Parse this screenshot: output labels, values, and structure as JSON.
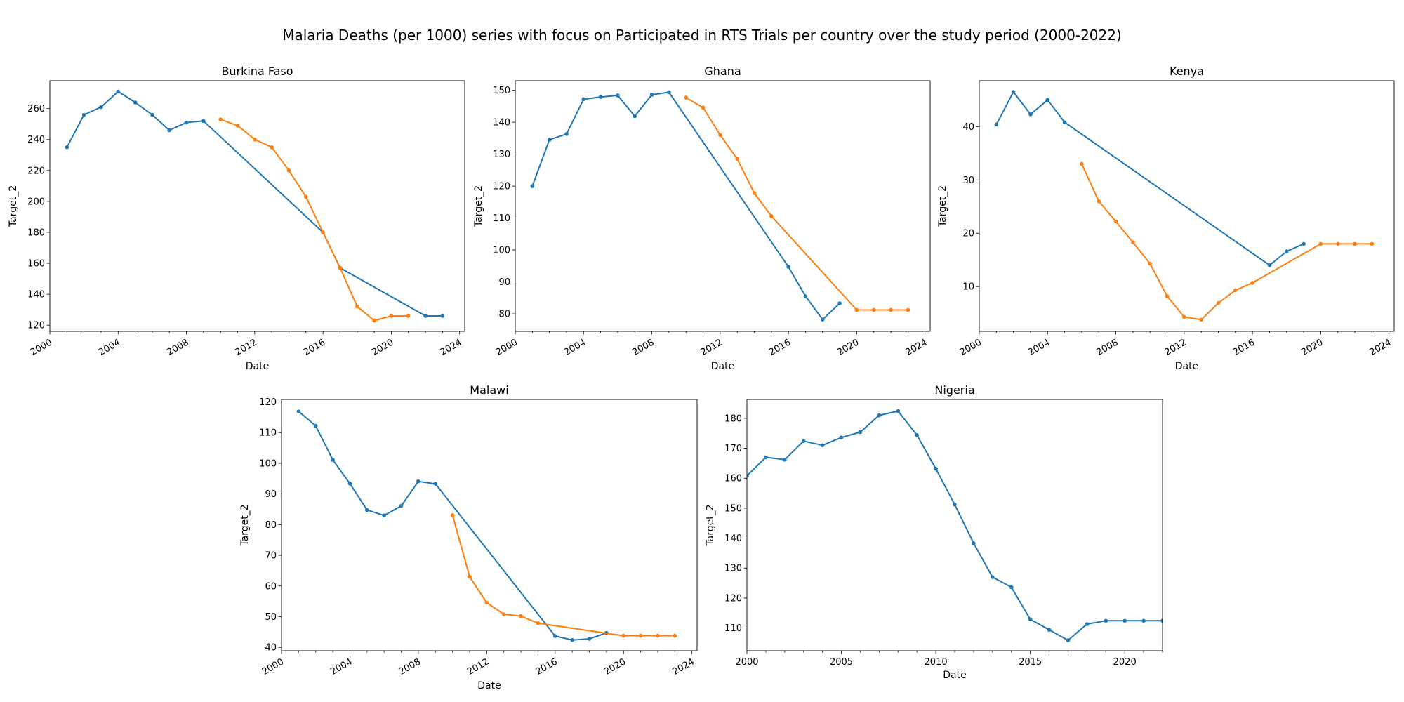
{
  "figure_title": "Malaria Deaths (per 1000) series with focus on Participated in RTS Trials per country over the study period (2000-2022)",
  "colors": {
    "series_blue": "#1f77b4",
    "series_orange": "#ff7f0e"
  },
  "chart_data": [
    {
      "type": "line",
      "title": "Burkina Faso",
      "xlabel": "Date",
      "ylabel": "Target_2",
      "xlim": [
        2000,
        2024.3
      ],
      "ylim": [
        116,
        278
      ],
      "xticks": [
        2000,
        2004,
        2008,
        2012,
        2016,
        2020,
        2024
      ],
      "yticks": [
        120,
        140,
        160,
        180,
        200,
        220,
        240,
        260
      ],
      "minor_xticks": true,
      "series": [
        {
          "color": "#1f77b4",
          "x": [
            2001,
            2002,
            2003,
            2004,
            2005,
            2006,
            2007,
            2008,
            2009,
            2016,
            2017,
            2022,
            2023
          ],
          "y": [
            235,
            256,
            261,
            271,
            264,
            256,
            246,
            251,
            252,
            180,
            157,
            126,
            126
          ]
        },
        {
          "color": "#ff7f0e",
          "x": [
            2010,
            2011,
            2012,
            2013,
            2014,
            2015,
            2016,
            2017,
            2018,
            2019,
            2020,
            2021
          ],
          "y": [
            253,
            249,
            240,
            235,
            220,
            203,
            180,
            157,
            132,
            123,
            126,
            126
          ]
        }
      ]
    },
    {
      "type": "line",
      "title": "Ghana",
      "xlabel": "Date",
      "ylabel": "Target_2",
      "xlim": [
        2000,
        2024.3
      ],
      "ylim": [
        74.5,
        153
      ],
      "xticks": [
        2000,
        2004,
        2008,
        2012,
        2016,
        2020,
        2024
      ],
      "yticks": [
        80,
        90,
        100,
        110,
        120,
        130,
        140,
        150
      ],
      "minor_xticks": true,
      "series": [
        {
          "color": "#1f77b4",
          "x": [
            2001,
            2002,
            2003,
            2004,
            2005,
            2006,
            2007,
            2008,
            2009,
            2016,
            2017,
            2018,
            2019
          ],
          "y": [
            120,
            134.5,
            136.3,
            147.2,
            147.9,
            148.4,
            141.9,
            148.6,
            149.4,
            94.7,
            85.5,
            78.2,
            83.3
          ]
        },
        {
          "color": "#ff7f0e",
          "x": [
            2010,
            2011,
            2012,
            2013,
            2014,
            2015,
            2020,
            2021,
            2022,
            2023
          ],
          "y": [
            147.7,
            144.6,
            136,
            128.5,
            117.8,
            110.6,
            81.2,
            81.2,
            81.2,
            81.2
          ]
        }
      ]
    },
    {
      "type": "line",
      "title": "Kenya",
      "xlabel": "Date",
      "ylabel": "Target_2",
      "xlim": [
        2000,
        2024.3
      ],
      "ylim": [
        1.6,
        48.6
      ],
      "xticks": [
        2000,
        2004,
        2008,
        2012,
        2016,
        2020,
        2024
      ],
      "yticks": [
        10,
        20,
        30,
        40
      ],
      "minor_xticks": true,
      "series": [
        {
          "color": "#1f77b4",
          "x": [
            2001,
            2002,
            2003,
            2004,
            2005,
            2017,
            2018,
            2019
          ],
          "y": [
            40.4,
            46.5,
            42.3,
            45,
            40.8,
            14,
            16.6,
            18
          ]
        },
        {
          "color": "#ff7f0e",
          "x": [
            2006,
            2007,
            2008,
            2009,
            2010,
            2011,
            2012,
            2013,
            2014,
            2015,
            2016,
            2020,
            2021,
            2022,
            2023
          ],
          "y": [
            33,
            26,
            22.2,
            18.3,
            14.3,
            8.2,
            4.3,
            3.8,
            6.9,
            9.3,
            10.7,
            18,
            18,
            18,
            18
          ]
        }
      ]
    },
    {
      "type": "line",
      "title": "Malawi",
      "xlabel": "Date",
      "ylabel": "Target_2",
      "xlim": [
        2000,
        2024.3
      ],
      "ylim": [
        38.9,
        120.8
      ],
      "xticks": [
        2000,
        2004,
        2008,
        2012,
        2016,
        2020,
        2024
      ],
      "yticks": [
        40,
        50,
        60,
        70,
        80,
        90,
        100,
        110,
        120
      ],
      "minor_xticks": true,
      "series": [
        {
          "color": "#1f77b4",
          "x": [
            2001,
            2002,
            2003,
            2004,
            2005,
            2006,
            2007,
            2008,
            2009,
            2016,
            2017,
            2018,
            2019
          ],
          "y": [
            116.9,
            112.2,
            101.1,
            93.4,
            84.8,
            83,
            86.1,
            94.1,
            93.3,
            43.7,
            42.4,
            42.8,
            44.7
          ]
        },
        {
          "color": "#ff7f0e",
          "x": [
            2010,
            2011,
            2012,
            2013,
            2014,
            2015,
            2020,
            2021,
            2022,
            2023
          ],
          "y": [
            83.1,
            63,
            54.6,
            50.8,
            50.2,
            47.9,
            43.8,
            43.8,
            43.8,
            43.8
          ]
        }
      ]
    },
    {
      "type": "line",
      "title": "Nigeria",
      "xlabel": "Date",
      "ylabel": "Target_2",
      "xlim": [
        2000,
        2022
      ],
      "ylim": [
        102.4,
        186.3
      ],
      "xticks": [
        2000,
        2005,
        2010,
        2015,
        2020
      ],
      "yticks": [
        110,
        120,
        130,
        140,
        150,
        160,
        170,
        180
      ],
      "minor_xticks": true,
      "series": [
        {
          "color": "#1f77b4",
          "x": [
            2000,
            2001,
            2002,
            2003,
            2004,
            2005,
            2006,
            2007,
            2008,
            2009,
            2010,
            2011,
            2012,
            2013,
            2014,
            2015,
            2016,
            2017,
            2018,
            2019,
            2020,
            2021,
            2022
          ],
          "y": [
            160.8,
            167,
            166.2,
            172.4,
            171,
            173.6,
            175.4,
            181,
            182.4,
            174.4,
            163.2,
            151.2,
            138.3,
            127,
            123.6,
            112.9,
            109.4,
            105.9,
            111.3,
            112.4,
            112.4,
            112.4,
            112.4
          ]
        }
      ]
    }
  ]
}
